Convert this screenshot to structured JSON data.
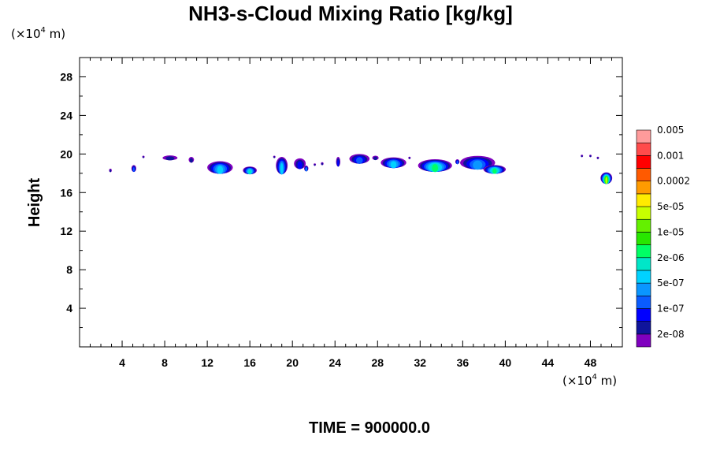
{
  "chart_data": {
    "type": "contour",
    "title": "NH3-s-Cloud Mixing Ratio [kg/kg]",
    "ylabel": "Height",
    "xlabel": "",
    "x_unit_label": {
      "prefix": "(×10",
      "exp": "4",
      "suffix": " m)"
    },
    "y_unit_label": {
      "prefix": "(×10",
      "exp": "4",
      "suffix": " m)"
    },
    "xlim": [
      0,
      51
    ],
    "ylim": [
      0,
      30
    ],
    "x_ticks": [
      4,
      8,
      12,
      16,
      20,
      24,
      28,
      32,
      36,
      40,
      44,
      48
    ],
    "y_ticks": [
      4,
      8,
      12,
      16,
      20,
      24,
      28
    ],
    "footer": "TIME = 900000.0",
    "colorbar": {
      "colors": [
        "#7f00bf",
        "#0f149b",
        "#0000ff",
        "#0a5cff",
        "#0a96ff",
        "#00d2ff",
        "#00e6c8",
        "#00ff64",
        "#28e600",
        "#64f000",
        "#c8ff00",
        "#ffeb00",
        "#ff9b00",
        "#ff5a00",
        "#ff0000",
        "#ff4b4b",
        "#ff9b9b"
      ],
      "labels": [
        "2e-08",
        "1e-07",
        "5e-07",
        "2e-06",
        "1e-05",
        "5e-05",
        "0.0002",
        "0.001",
        "0.005"
      ]
    },
    "cloud_patches": [
      {
        "x": 2.9,
        "y": 18.3,
        "w": 0.25,
        "h": 0.35,
        "level": 1
      },
      {
        "x": 5.1,
        "y": 18.5,
        "w": 0.45,
        "h": 0.7,
        "level": 3
      },
      {
        "x": 6.0,
        "y": 19.7,
        "w": 0.12,
        "h": 0.18,
        "level": 1
      },
      {
        "x": 8.5,
        "y": 19.6,
        "w": 1.4,
        "h": 0.5,
        "level": 1
      },
      {
        "x": 10.5,
        "y": 19.4,
        "w": 0.5,
        "h": 0.6,
        "level": 1
      },
      {
        "x": 13.2,
        "y": 18.6,
        "w": 2.4,
        "h": 1.3,
        "level": 5
      },
      {
        "x": 16.0,
        "y": 18.3,
        "w": 1.3,
        "h": 0.8,
        "level": 6
      },
      {
        "x": 18.3,
        "y": 19.7,
        "w": 0.18,
        "h": 0.25,
        "level": 1
      },
      {
        "x": 19.0,
        "y": 18.8,
        "w": 1.1,
        "h": 1.8,
        "level": 5
      },
      {
        "x": 20.7,
        "y": 19.0,
        "w": 1.1,
        "h": 1.1,
        "level": 2
      },
      {
        "x": 21.3,
        "y": 18.5,
        "w": 0.4,
        "h": 0.6,
        "level": 4
      },
      {
        "x": 22.1,
        "y": 18.9,
        "w": 0.2,
        "h": 0.25,
        "level": 1
      },
      {
        "x": 22.8,
        "y": 19.0,
        "w": 0.25,
        "h": 0.3,
        "level": 1
      },
      {
        "x": 24.3,
        "y": 19.2,
        "w": 0.4,
        "h": 1.0,
        "level": 2
      },
      {
        "x": 26.3,
        "y": 19.5,
        "w": 1.9,
        "h": 1.0,
        "level": 3
      },
      {
        "x": 27.8,
        "y": 19.6,
        "w": 0.6,
        "h": 0.45,
        "level": 1
      },
      {
        "x": 29.5,
        "y": 19.1,
        "w": 2.4,
        "h": 1.1,
        "level": 5
      },
      {
        "x": 31.0,
        "y": 19.6,
        "w": 0.15,
        "h": 0.2,
        "level": 1
      },
      {
        "x": 33.4,
        "y": 18.8,
        "w": 3.2,
        "h": 1.3,
        "level": 7
      },
      {
        "x": 35.5,
        "y": 19.2,
        "w": 0.4,
        "h": 0.5,
        "level": 3
      },
      {
        "x": 37.4,
        "y": 19.1,
        "w": 3.3,
        "h": 1.4,
        "level": 4
      },
      {
        "x": 39.0,
        "y": 18.4,
        "w": 2.1,
        "h": 0.9,
        "level": 7
      },
      {
        "x": 47.2,
        "y": 19.8,
        "w": 0.2,
        "h": 0.25,
        "level": 1
      },
      {
        "x": 48.0,
        "y": 19.8,
        "w": 0.12,
        "h": 0.15,
        "level": 1
      },
      {
        "x": 48.7,
        "y": 19.6,
        "w": 0.15,
        "h": 0.25,
        "level": 1
      },
      {
        "x": 49.5,
        "y": 17.5,
        "w": 1.1,
        "h": 1.2,
        "level": 10
      }
    ]
  }
}
